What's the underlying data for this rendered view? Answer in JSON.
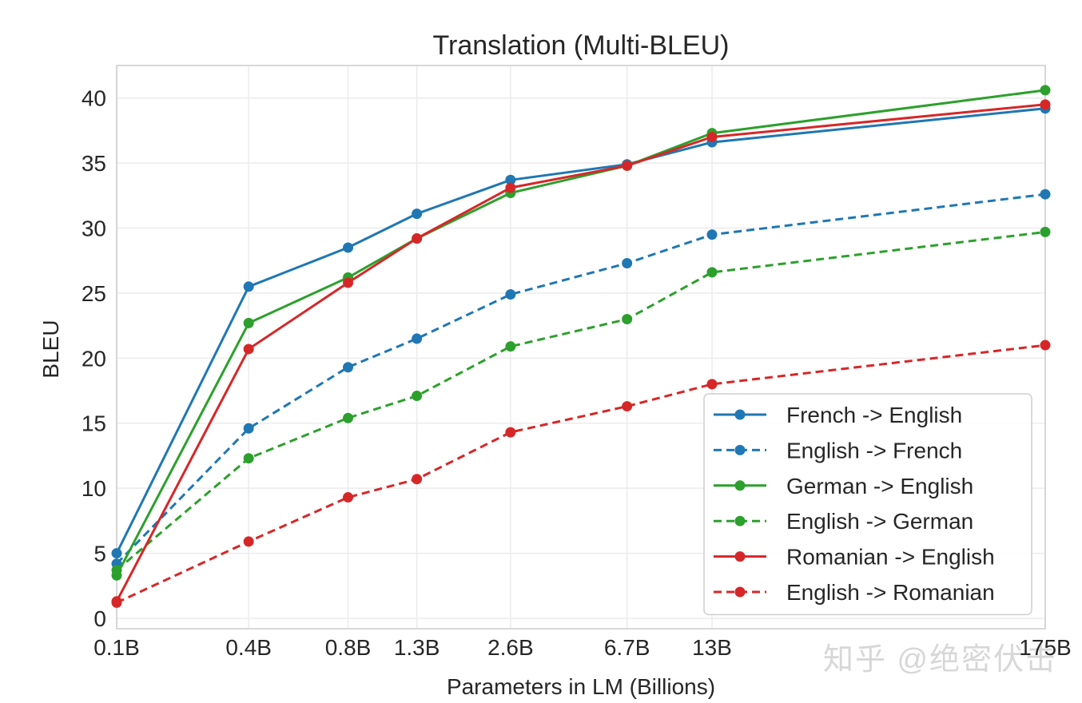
{
  "chart_data": {
    "type": "line",
    "title": "Translation (Multi-BLEU)",
    "xlabel": "Parameters in LM (Billions)",
    "ylabel": "BLEU",
    "x_scale": "log",
    "x_ticks": [
      0.125,
      0.35,
      0.76,
      1.3,
      2.7,
      6.7,
      13,
      175
    ],
    "categories": [
      "0.1B",
      "0.4B",
      "0.8B",
      "1.3B",
      "2.6B",
      "6.7B",
      "13B",
      "175B"
    ],
    "yticks": [
      0,
      5,
      10,
      15,
      20,
      25,
      30,
      35,
      40
    ],
    "ylim": [
      -0.8,
      42.5
    ],
    "grid": true,
    "legend_position": "lower-right",
    "series": [
      {
        "name": "French -> English",
        "color": "#1f77b4",
        "line_style": "solid",
        "values": [
          5.0,
          25.5,
          28.5,
          31.1,
          33.7,
          34.9,
          36.6,
          39.2
        ]
      },
      {
        "name": "English -> French",
        "color": "#1f77b4",
        "line_style": "dashed",
        "values": [
          4.2,
          14.6,
          19.3,
          21.5,
          24.9,
          27.3,
          29.5,
          32.6
        ]
      },
      {
        "name": "German -> English",
        "color": "#2ca02c",
        "line_style": "solid",
        "values": [
          3.3,
          22.7,
          26.2,
          29.2,
          32.7,
          34.8,
          37.3,
          40.6
        ]
      },
      {
        "name": "English -> German",
        "color": "#2ca02c",
        "line_style": "dashed",
        "values": [
          3.7,
          12.3,
          15.4,
          17.1,
          20.9,
          23.0,
          26.6,
          29.7
        ]
      },
      {
        "name": "Romanian -> English",
        "color": "#d62728",
        "line_style": "solid",
        "values": [
          1.3,
          20.7,
          25.8,
          29.2,
          33.1,
          34.8,
          37.0,
          39.5
        ]
      },
      {
        "name": "English -> Romanian",
        "color": "#d62728",
        "line_style": "dashed",
        "values": [
          1.2,
          5.9,
          9.3,
          10.7,
          14.3,
          16.3,
          18.0,
          21.0
        ]
      }
    ]
  },
  "watermark": {
    "text": "知乎 @绝密伏击"
  },
  "colors": {
    "axes_border": "#cccccc",
    "grid": "#ebebeb",
    "text": "#262626",
    "legend_border": "#cccccc",
    "legend_background": "#ffffff"
  }
}
